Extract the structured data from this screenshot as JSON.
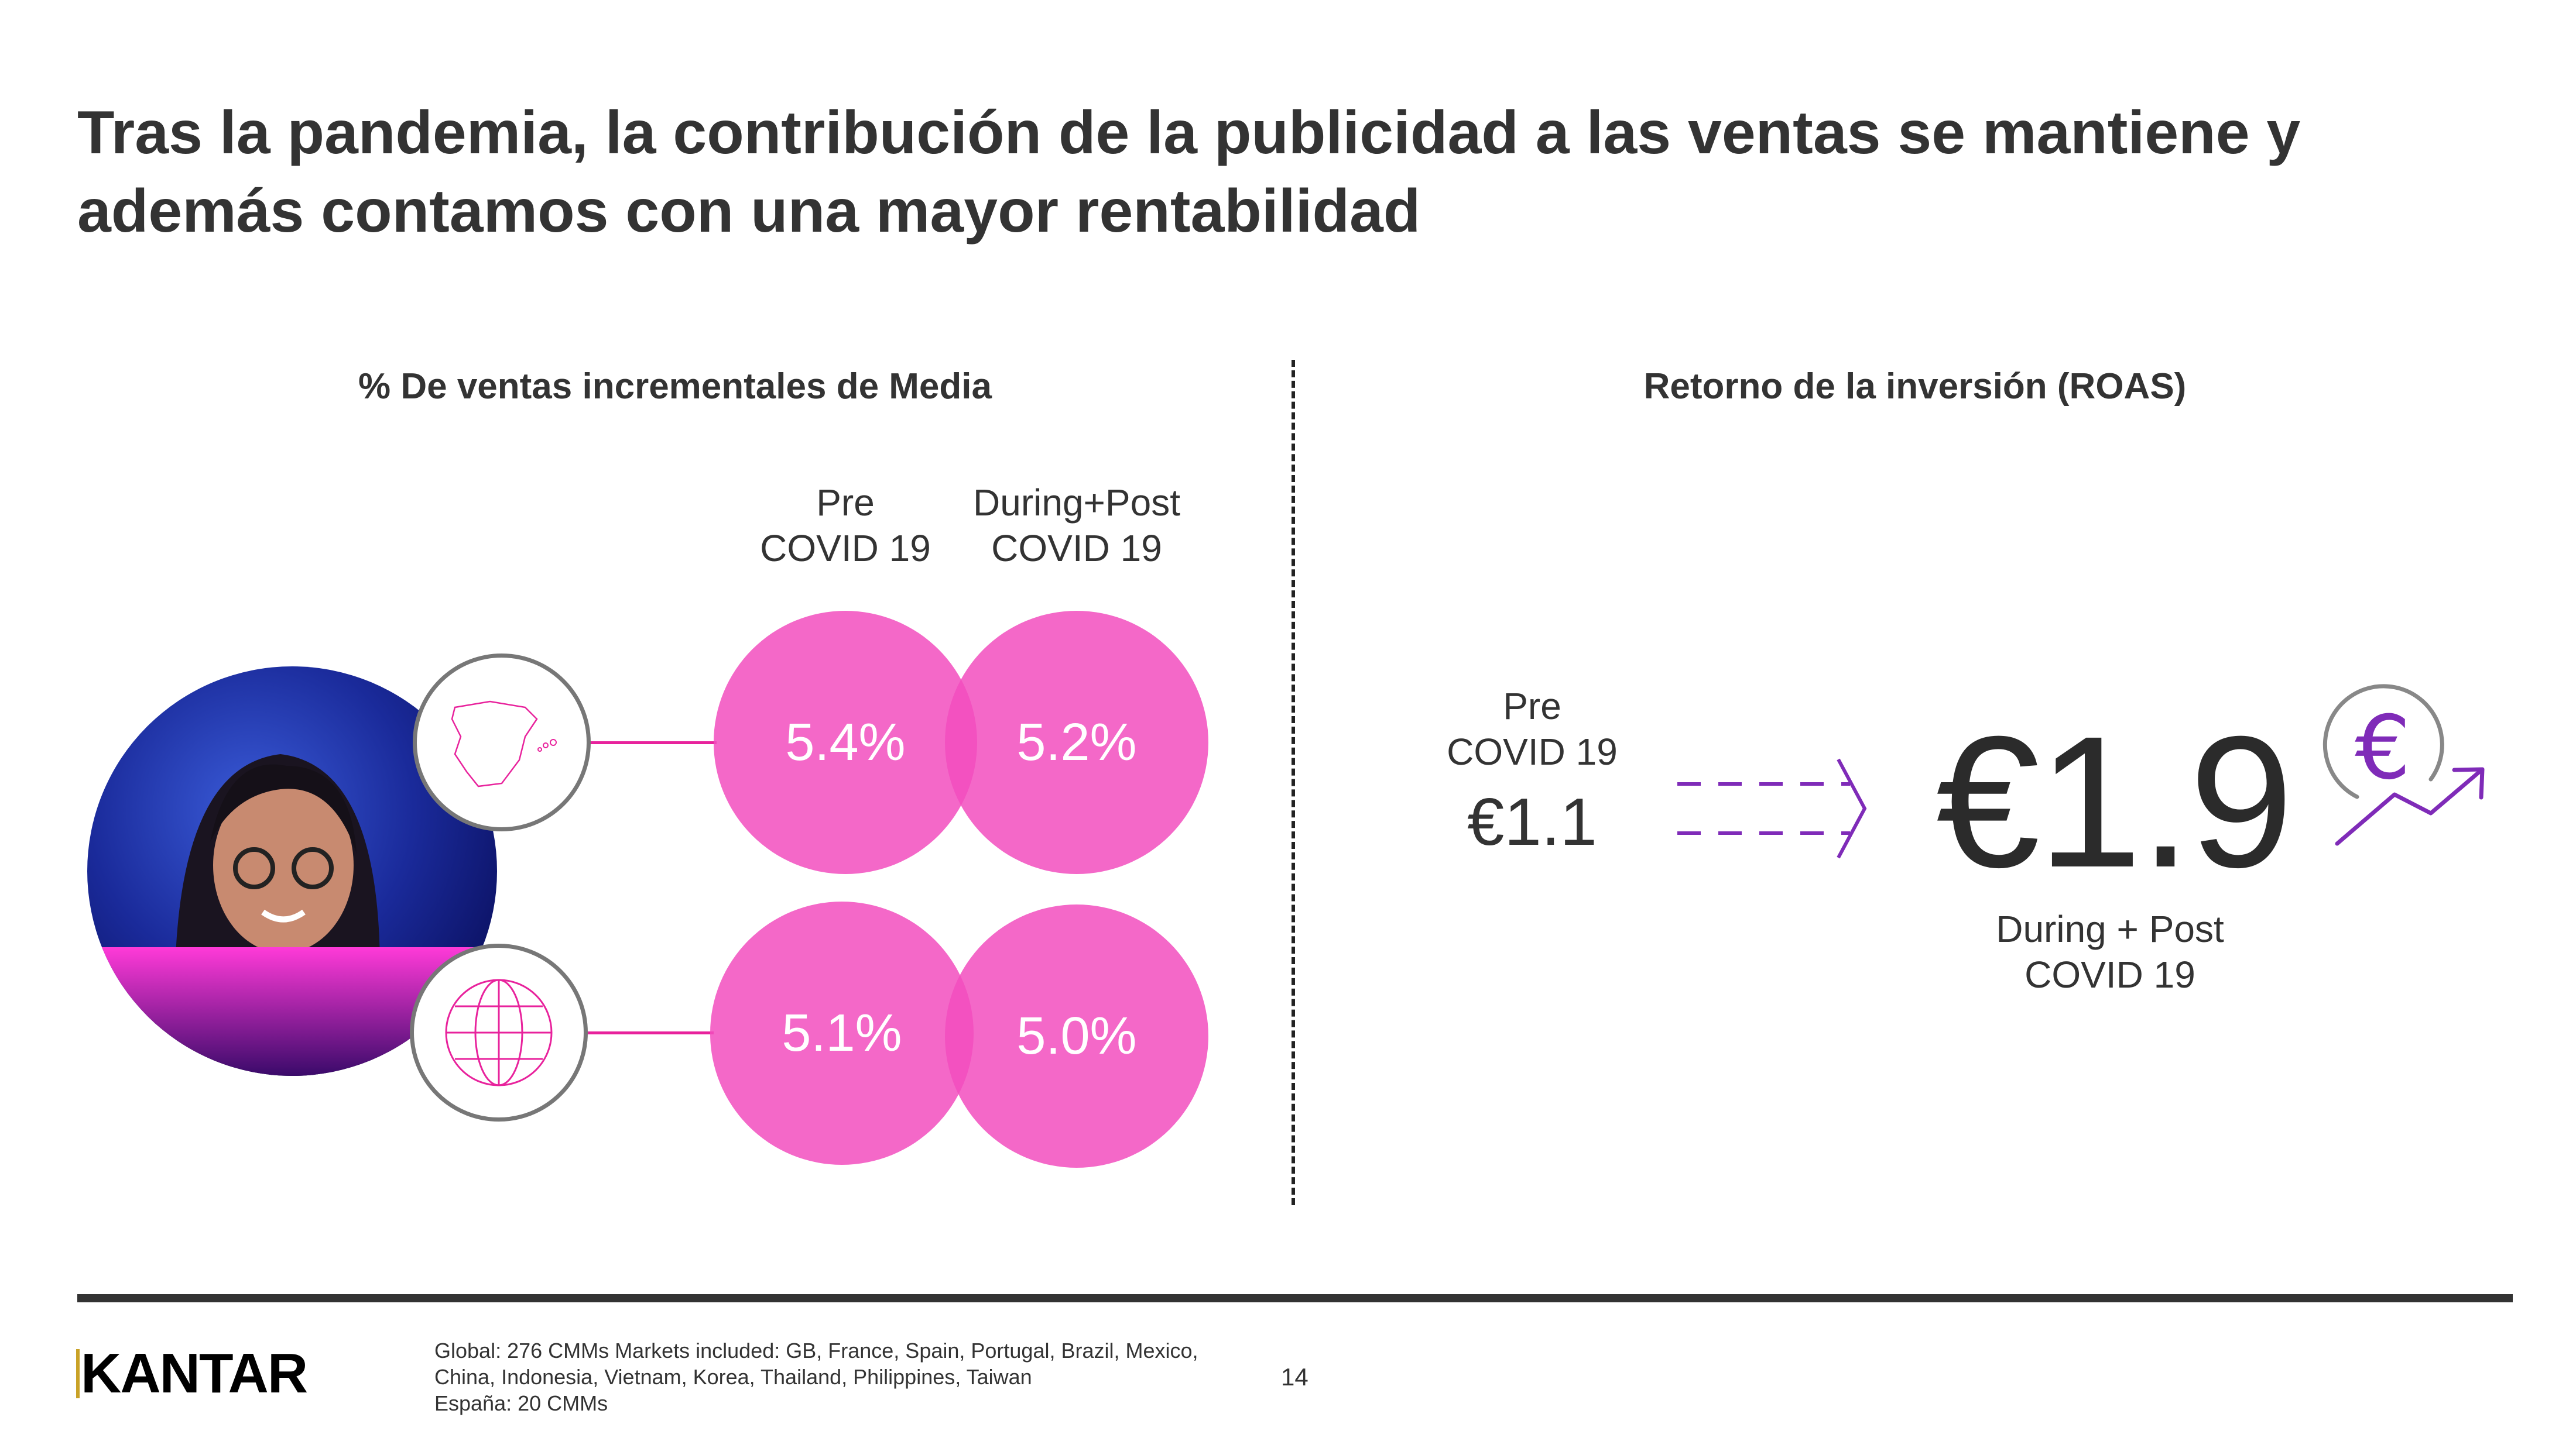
{
  "title": "Tras la pandemia, la contribución de la publicidad a las ventas se mantiene y además contamos con una mayor rentabilidad",
  "left_panel": {
    "heading": "% De ventas incrementales de Media",
    "col_pre": [
      "Pre",
      "COVID 19"
    ],
    "col_post": [
      "During+Post",
      "COVID 19"
    ],
    "rows": [
      {
        "icon": "spain-map-icon",
        "pre": "5.4%",
        "post": "5.2%"
      },
      {
        "icon": "globe-icon",
        "pre": "5.1%",
        "post": "5.0%"
      }
    ]
  },
  "right_panel": {
    "heading": "Retorno de la inversión (ROAS)",
    "pre_label": [
      "Pre",
      "COVID 19"
    ],
    "pre_value": "€1.1",
    "post_value": "€1.9",
    "post_label": [
      "During + Post",
      "COVID 19"
    ],
    "icon": "euro-growth-icon"
  },
  "footer": {
    "logo": "KANTAR",
    "notes": [
      "Global: 276 CMMs Markets included: GB, France, Spain, Portugal, Brazil, Mexico,",
      "China, Indonesia, Vietnam, Korea, Thailand, Philippines, Taiwan",
      "España: 20 CMMs"
    ],
    "page_number": "14"
  },
  "colors": {
    "bubble": "#f24ebe",
    "accent_purple": "#7f2bb8",
    "connector": "#e8229c",
    "text": "#333333"
  }
}
